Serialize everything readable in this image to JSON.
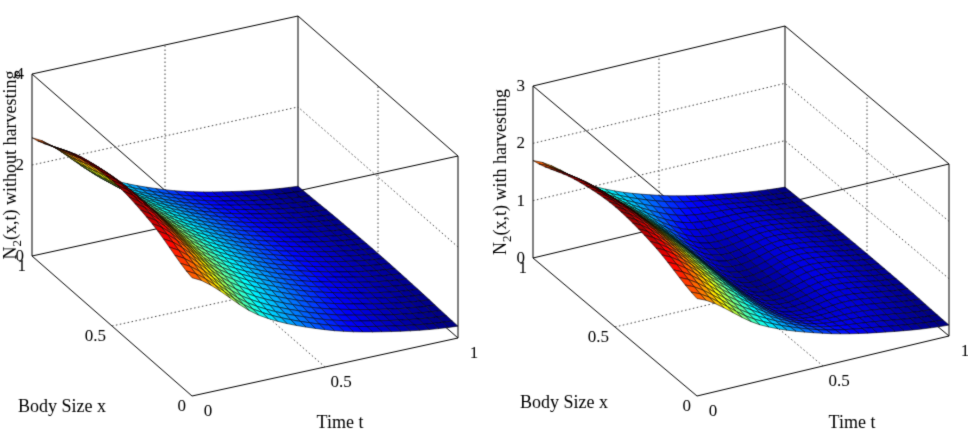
{
  "background": "#ffffff",
  "mesh_edge_color": "#000000",
  "chart_data": [
    {
      "type": "surface",
      "title": "",
      "xlabel": "Time t",
      "ylabel": "Body Size x",
      "zlabel": "N2(x,t) without harvesting",
      "zlabel_parts": {
        "prefix": "N",
        "sub": "2",
        "rest": "(x,t) without harvesting"
      },
      "colormap": "jet",
      "grid": true,
      "legend": "none",
      "xlim": [
        0,
        1
      ],
      "ylim": [
        0,
        1
      ],
      "zlim": [
        0,
        4
      ],
      "x_ticks": [
        0,
        0.5,
        1
      ],
      "y_ticks": [
        0,
        0.5,
        1
      ],
      "z_ticks": [
        0,
        2,
        4
      ],
      "x": [
        0,
        0.25,
        0.5,
        0.75,
        1
      ],
      "y": [
        0,
        0.25,
        0.5,
        0.75,
        1
      ],
      "z_note": "rows indexed by y (Body Size x), columns by x (Time t)",
      "z": [
        [
          2.6,
          1.46,
          0.82,
          0.46,
          0.26
        ],
        [
          3.02,
          1.7,
          0.96,
          0.54,
          0.3
        ],
        [
          3.2,
          1.8,
          1.01,
          0.57,
          0.32
        ],
        [
          3.02,
          1.7,
          0.96,
          0.54,
          0.3
        ],
        [
          2.6,
          1.46,
          0.82,
          0.46,
          0.26
        ]
      ]
    },
    {
      "type": "surface",
      "title": "",
      "xlabel": "Time t",
      "ylabel": "Body Size x",
      "zlabel": "N2(x,t) with harvesting",
      "zlabel_parts": {
        "prefix": "N",
        "sub": "2",
        "rest": "(x,t) with harvesting"
      },
      "colormap": "jet",
      "grid": true,
      "legend": "none",
      "xlim": [
        0,
        1
      ],
      "ylim": [
        0,
        1
      ],
      "zlim": [
        0,
        3
      ],
      "x_ticks": [
        0,
        0.5,
        1
      ],
      "y_ticks": [
        0,
        0.5,
        1
      ],
      "z_ticks": [
        0,
        1,
        2,
        3
      ],
      "x": [
        0,
        0.25,
        0.5,
        0.75,
        1
      ],
      "y": [
        0,
        0.25,
        0.5,
        0.75,
        1
      ],
      "z_note": "rows indexed by y (Body Size x), columns by x (Time t); valley near t=0.5 caused by harvesting",
      "z": [
        [
          1.7,
          0.98,
          0.57,
          0.33,
          0.19
        ],
        [
          1.98,
          1.13,
          0.34,
          0.37,
          0.22
        ],
        [
          2.1,
          1.19,
          0.25,
          0.39,
          0.23
        ],
        [
          1.98,
          1.13,
          0.34,
          0.37,
          0.22
        ],
        [
          1.7,
          0.98,
          0.57,
          0.33,
          0.19
        ]
      ]
    }
  ]
}
